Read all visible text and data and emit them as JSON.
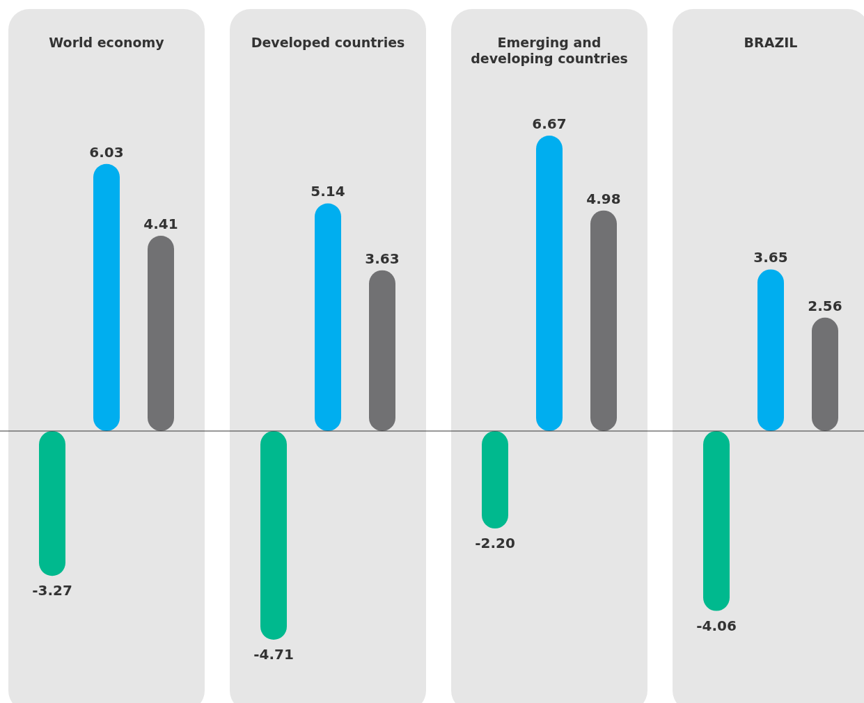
{
  "chart_data": {
    "type": "bar",
    "categories": [
      "World economy",
      "Developed countries",
      "Emerging and developing countries",
      "BRAZIL"
    ],
    "series": [
      {
        "color": "#00b98e",
        "values": [
          -3.27,
          -4.71,
          -2.2,
          -4.06
        ],
        "value_labels": [
          "-3.27",
          "-4.71",
          "-2.20",
          "-4.06"
        ]
      },
      {
        "color": "#00aeef",
        "values": [
          6.03,
          5.14,
          6.67,
          3.65
        ],
        "value_labels": [
          "6.03",
          "5.14",
          "6.67",
          "3.65"
        ]
      },
      {
        "color": "#717173",
        "values": [
          4.41,
          3.63,
          4.98,
          2.56
        ],
        "value_labels": [
          "4.41",
          "3.63",
          "4.98",
          "2.56"
        ]
      }
    ],
    "tick_labels": "x"
  }
}
